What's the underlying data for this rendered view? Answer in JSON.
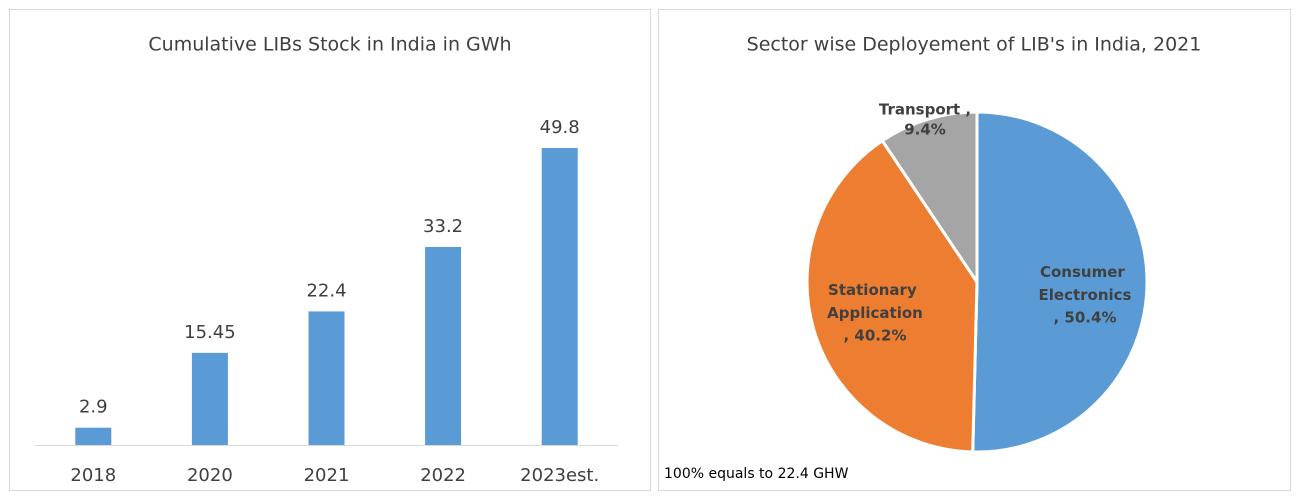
{
  "chart_data": [
    {
      "type": "bar",
      "title": "Cumulative LIBs Stock in India in GWh",
      "categories": [
        "2018",
        "2020",
        "2021",
        "2022",
        "2023est."
      ],
      "values": [
        2.9,
        15.45,
        22.4,
        33.2,
        49.8
      ],
      "color": "#5b9bd5"
    },
    {
      "type": "pie",
      "title": "Sector wise Deployement of LIB's in India, 2021",
      "categories": [
        "Consumer Electronics",
        "Stationary Application",
        "Transport ,"
      ],
      "values": [
        50.4,
        40.2,
        9.4
      ],
      "value_labels": [
        ", 50.4%",
        ", 40.2%",
        "9.4%"
      ],
      "colors": [
        "#5b9bd5",
        "#ed7d31",
        "#a5a5a5"
      ],
      "annotation": "100% equals to 22.4 GHW"
    }
  ]
}
